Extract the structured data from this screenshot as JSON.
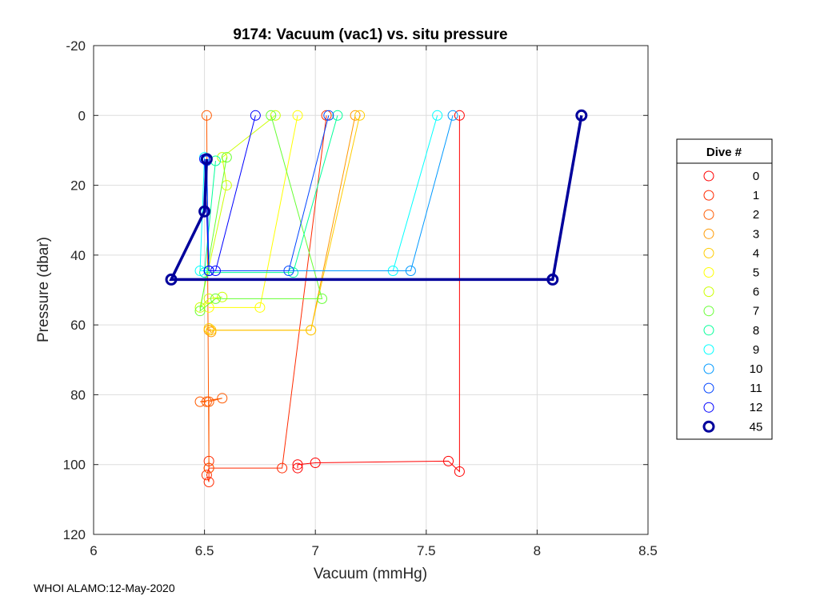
{
  "chart_data": {
    "type": "scatter",
    "title": "9174: Vacuum (vac1) vs. situ pressure",
    "xlabel": "Vacuum (mmHg)",
    "ylabel": "Pressure (dbar)",
    "xlim": [
      6,
      8.5
    ],
    "ylim": [
      -20,
      120
    ],
    "y_reversed": true,
    "x_ticks": [
      6,
      6.5,
      7,
      7.5,
      8,
      8.5
    ],
    "y_ticks": [
      -20,
      0,
      20,
      40,
      60,
      80,
      100,
      120
    ],
    "x_tick_labels": [
      "6",
      "6.5",
      "7",
      "7.5",
      "8",
      "8.5"
    ],
    "y_tick_labels": [
      "-20",
      "0",
      "20",
      "40",
      "60",
      "80",
      "100",
      "120"
    ],
    "grid": true,
    "legend": {
      "title": "Dive #",
      "position": "right"
    },
    "series": [
      {
        "name": "0",
        "color": "#ff0000",
        "x": [
          7.65,
          7.65,
          7.6,
          7.0,
          6.92,
          6.92
        ],
        "y": [
          0,
          102,
          99,
          99.5,
          100,
          101
        ]
      },
      {
        "name": "1",
        "color": "#ff2a00",
        "x": [
          7.05,
          6.85,
          6.52,
          6.51,
          6.52,
          6.52
        ],
        "y": [
          0,
          101,
          101,
          103,
          105,
          99
        ]
      },
      {
        "name": "2",
        "color": "#ff5a00",
        "x": [
          6.51,
          6.52,
          6.52,
          6.58,
          6.48,
          6.51
        ],
        "y": [
          0,
          101,
          82,
          81,
          82,
          82
        ]
      },
      {
        "name": "3",
        "color": "#ff9900",
        "x": [
          7.18,
          6.98,
          6.52,
          6.53
        ],
        "y": [
          0,
          61.5,
          61.5,
          62
        ]
      },
      {
        "name": "4",
        "color": "#ffcc00",
        "x": [
          7.2,
          6.98,
          6.53,
          6.52
        ],
        "y": [
          0,
          61.5,
          61.5,
          61
        ]
      },
      {
        "name": "5",
        "color": "#ffff00",
        "x": [
          6.92,
          6.75,
          6.52
        ],
        "y": [
          0,
          55,
          55
        ]
      },
      {
        "name": "6",
        "color": "#ccff00",
        "x": [
          6.82,
          6.58,
          6.6,
          6.48,
          6.52,
          6.58
        ],
        "y": [
          0,
          12,
          20,
          55,
          52.5,
          52
        ]
      },
      {
        "name": "7",
        "color": "#66ff33",
        "x": [
          6.8,
          7.03,
          6.55,
          6.48,
          6.6
        ],
        "y": [
          0,
          52.5,
          52.5,
          56,
          12
        ]
      },
      {
        "name": "8",
        "color": "#00ff99",
        "x": [
          7.1,
          6.9,
          6.5,
          6.55
        ],
        "y": [
          0,
          45,
          45,
          13
        ]
      },
      {
        "name": "9",
        "color": "#00ffff",
        "x": [
          7.55,
          7.35,
          6.48,
          6.5
        ],
        "y": [
          0,
          44.5,
          44.5,
          12
        ]
      },
      {
        "name": "10",
        "color": "#0099ff",
        "x": [
          7.62,
          7.43,
          6.52,
          6.51
        ],
        "y": [
          0,
          44.5,
          44.5,
          12.5
        ]
      },
      {
        "name": "11",
        "color": "#0044ff",
        "x": [
          7.06,
          6.88,
          6.52,
          6.51
        ],
        "y": [
          0,
          44.5,
          44.5,
          13
        ]
      },
      {
        "name": "12",
        "color": "#0000ff",
        "x": [
          6.73,
          6.55,
          6.52,
          6.5
        ],
        "y": [
          0,
          44.5,
          44.5,
          12.5
        ]
      },
      {
        "name": "45",
        "color": "#00009c",
        "x": [
          8.2,
          8.07,
          6.35,
          6.5,
          6.51
        ],
        "y": [
          0,
          47,
          47,
          27.5,
          12.5
        ]
      }
    ],
    "footer": "WHOI ALAMO:12-May-2020"
  }
}
